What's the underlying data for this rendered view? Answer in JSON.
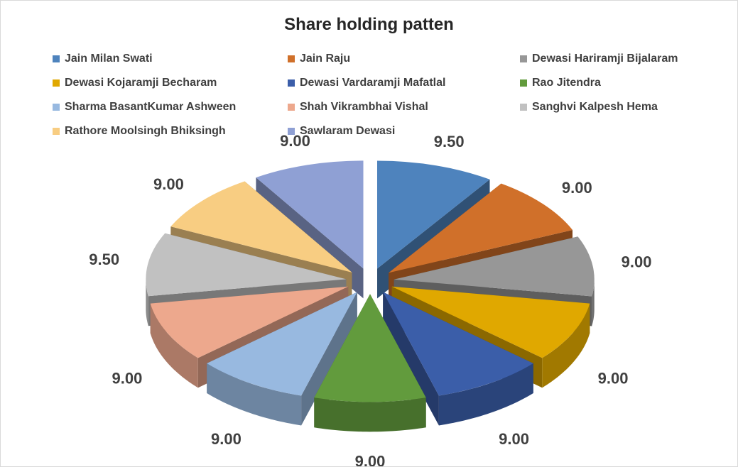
{
  "chart_data": {
    "type": "pie",
    "title": "Share holding patten",
    "legend_position": "top",
    "categories": [
      "Jain Milan Swati",
      "Jain Raju",
      "Dewasi Hariramji Bijalaram",
      "Dewasi Kojaramji Becharam",
      "Dewasi Vardaramji Mafatlal",
      "Rao Jitendra",
      "Sharma BasantKumar Ashween",
      "Shah Vikrambhai Vishal",
      "Sanghvi Kalpesh Hema",
      "Rathore Moolsingh Bhiksingh",
      "Sawlaram Dewasi"
    ],
    "values": [
      9.5,
      9.0,
      9.0,
      9.0,
      9.0,
      9.0,
      9.0,
      9.0,
      9.5,
      9.0,
      9.0
    ],
    "data_labels": [
      "9.50",
      "9.00",
      "9.00",
      "9.00",
      "9.00",
      "9.00",
      "9.00",
      "9.00",
      "9.50",
      "9.00",
      "9.00"
    ],
    "colors": [
      "#4e83bd",
      "#d0702a",
      "#979797",
      "#e0a800",
      "#3b5ea9",
      "#629b3d",
      "#98b9e0",
      "#eda88d",
      "#c1c1c1",
      "#f8cd82",
      "#8fa0d4"
    ],
    "exploded": true,
    "three_d": true
  }
}
